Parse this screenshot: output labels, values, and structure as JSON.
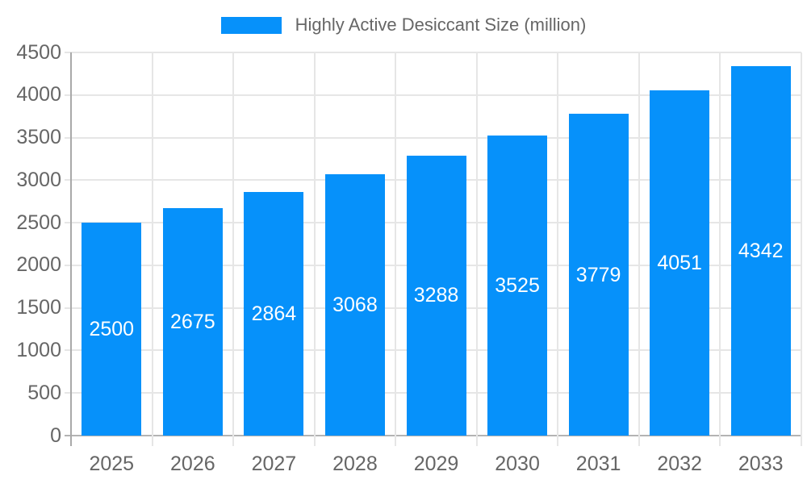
{
  "legend": {
    "label": "Highly Active Desiccant Size (million)"
  },
  "chart_data": {
    "type": "bar",
    "title": "Highly Active Desiccant Size (million)",
    "categories": [
      "2025",
      "2026",
      "2027",
      "2028",
      "2029",
      "2030",
      "2031",
      "2032",
      "2033"
    ],
    "values": [
      2500,
      2675,
      2864,
      3068,
      3288,
      3525,
      3779,
      4051,
      4342
    ],
    "xlabel": "",
    "ylabel": "",
    "ylim": [
      0,
      4500
    ],
    "yticks": [
      0,
      500,
      1000,
      1500,
      2000,
      2500,
      3000,
      3500,
      4000,
      4500
    ],
    "grid": true,
    "legend_position": "top",
    "value_label_position": "inside-center"
  },
  "colors": {
    "bar": "#0691FA",
    "grid": "#e6e6e6",
    "axis": "#b0b0b0",
    "tick_text": "#666666",
    "legend_text": "#666666",
    "value_label": "#ffffff",
    "background": "#ffffff"
  }
}
